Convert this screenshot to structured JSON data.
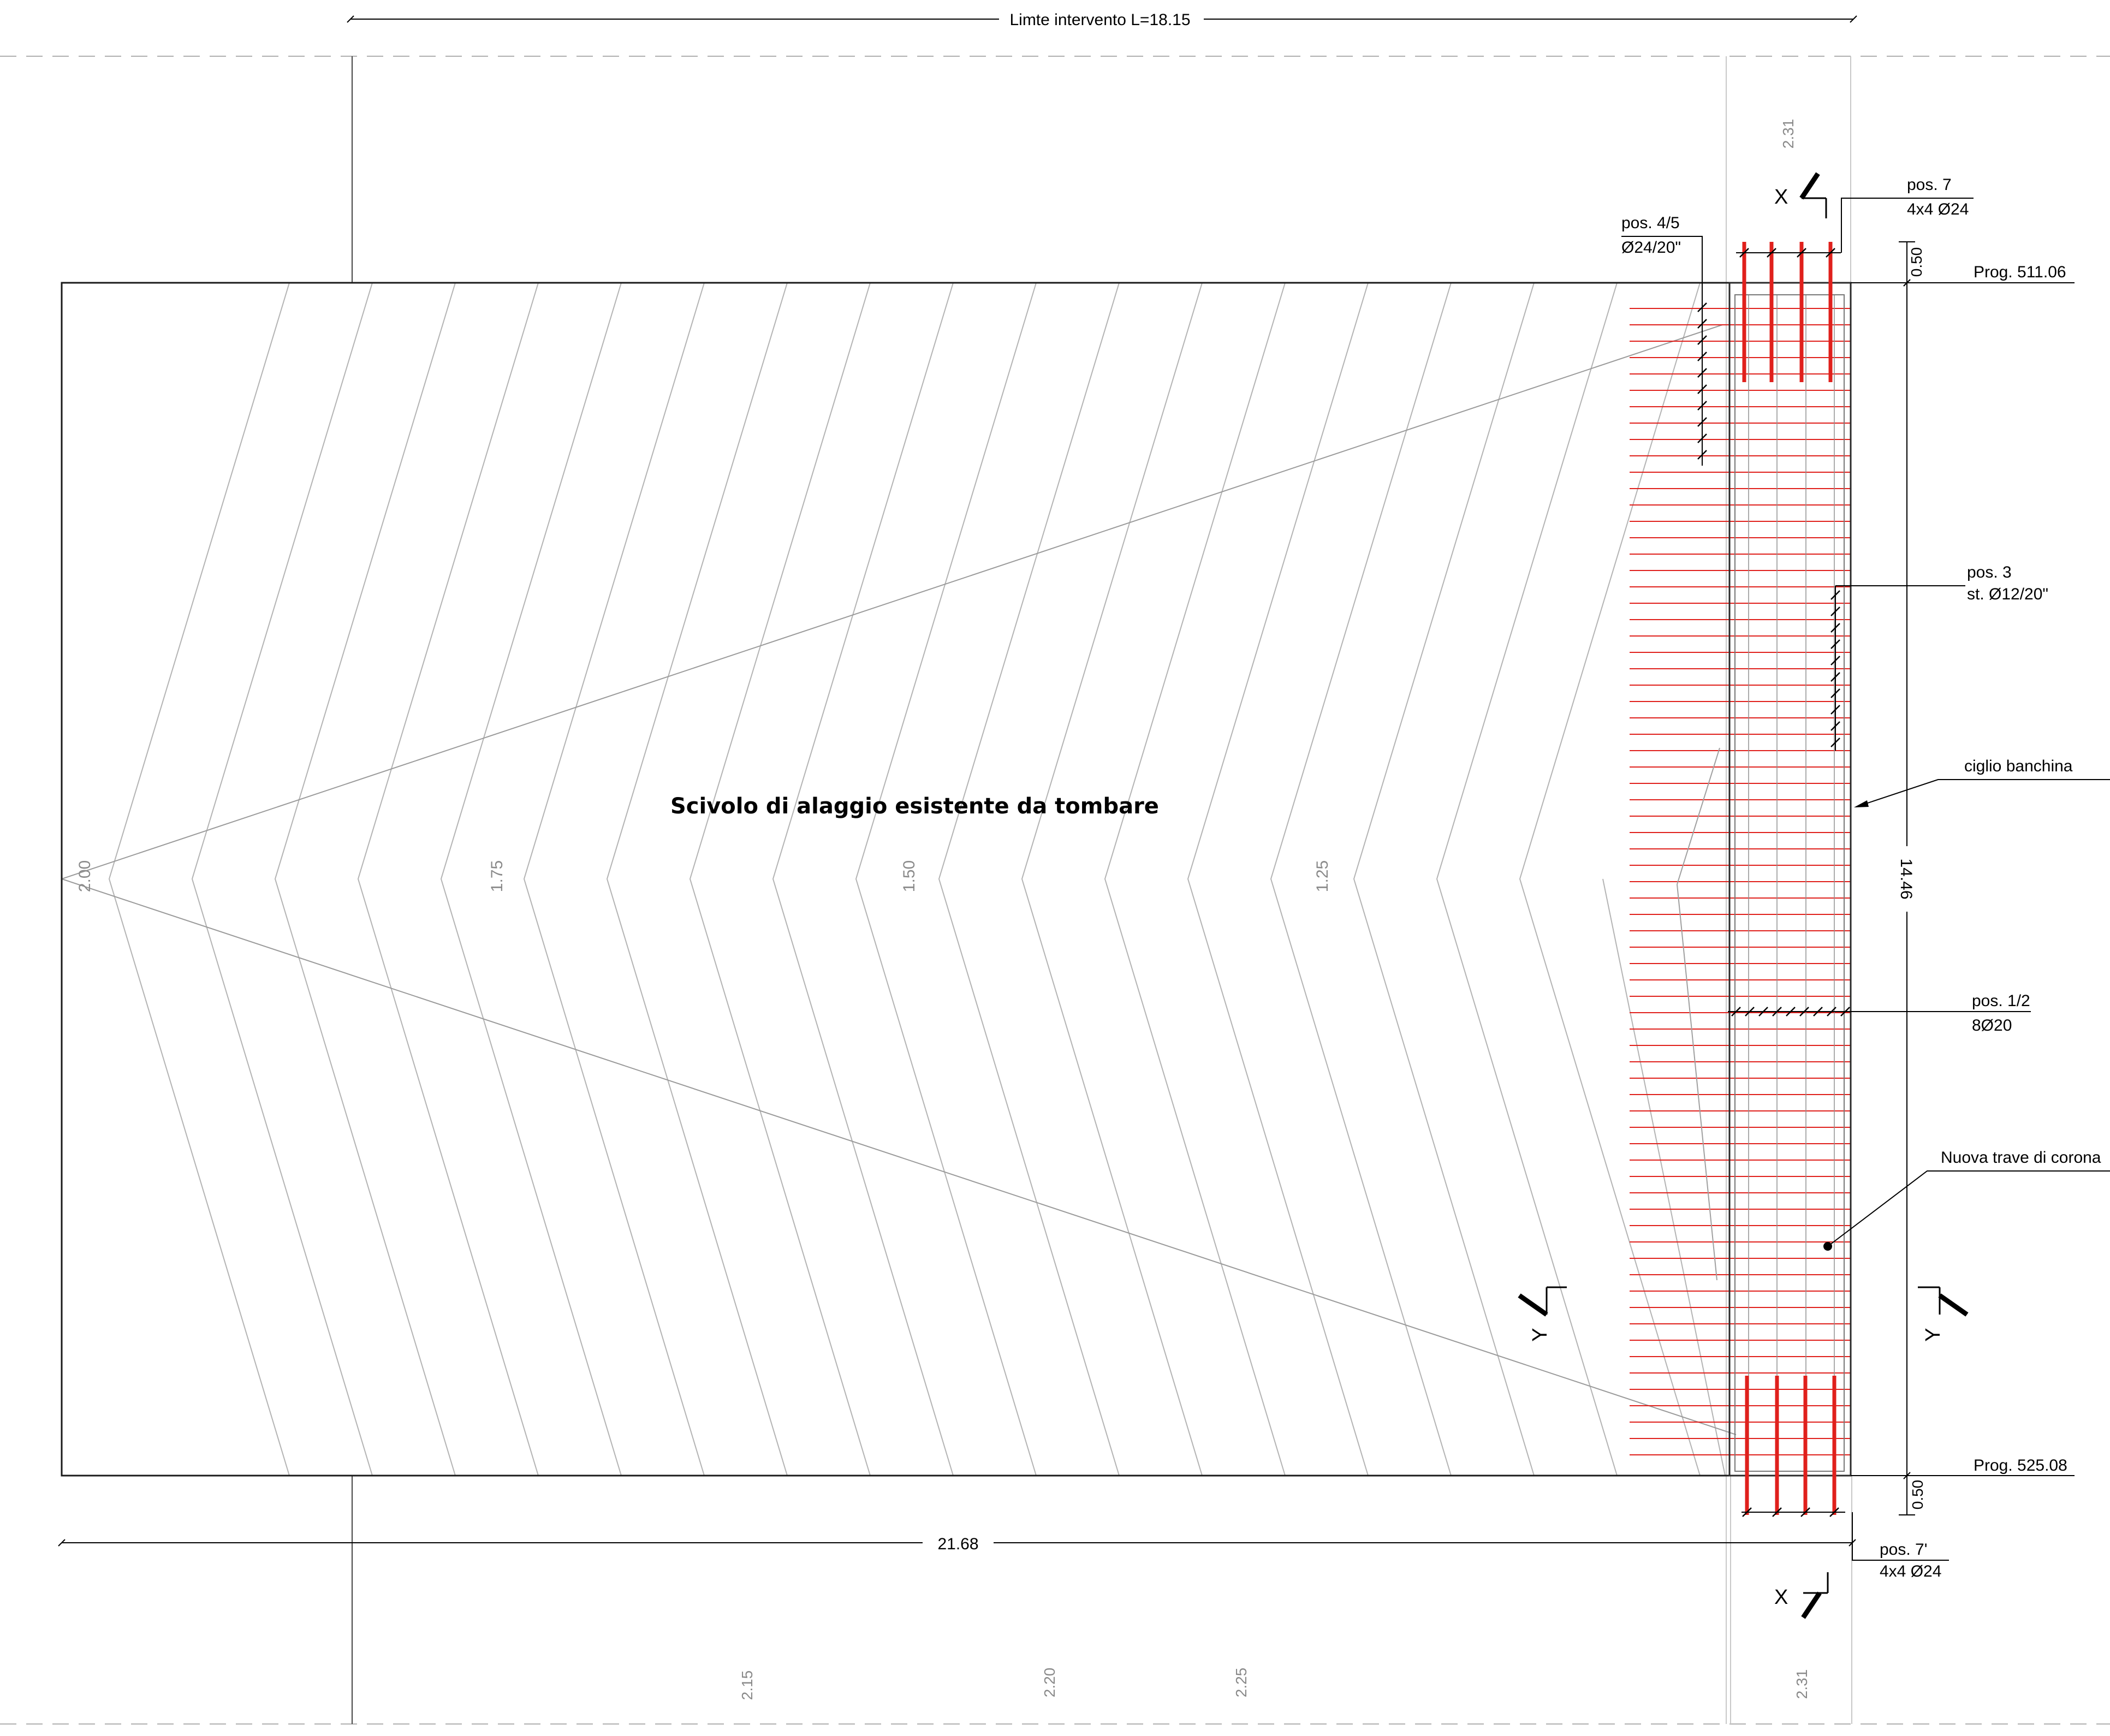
{
  "dimensions": {
    "top_limit": "Limte intervento L=18.15",
    "bottom_length": "21.68",
    "right_height": "14.46",
    "offset_top": "0.50",
    "offset_bottom": "0.50",
    "col_width_top": "2.31",
    "col_width_bottom": "2.31"
  },
  "elevations": {
    "e200": "2.00",
    "e175": "1.75",
    "e150": "1.50",
    "e125": "1.25"
  },
  "bottom_labels": {
    "l215": "2.15",
    "l220": "2.20",
    "l225": "2.25"
  },
  "progressives": {
    "top": "Prog. 511.06",
    "bottom": "Prog. 525.08"
  },
  "main_label": "Scivolo di alaggio esistente da tombare",
  "callouts": {
    "pos7": {
      "line1": "pos. 7",
      "line2": "4x4 Ø24"
    },
    "pos45": {
      "line1": "pos. 4/5",
      "line2": "Ø24/20\""
    },
    "pos3": {
      "line1": "pos. 3",
      "line2": "st. Ø12/20\""
    },
    "ciglio": "ciglio banchina",
    "pos12": {
      "line1": "pos. 1/2",
      "line2": "8Ø20"
    },
    "nuova": "Nuova trave di corona",
    "pos7b": {
      "line1": "pos. 7'",
      "line2": "4x4 Ø24"
    }
  },
  "section_marks": {
    "x_top": "X",
    "x_bottom": "X",
    "y_left": "Y",
    "y_right": "Y"
  },
  "colors": {
    "rebar": "#e0201c",
    "hatch": "#b4b4b4",
    "outline": "#1a1a1a",
    "dim_text": "#8a8a8a"
  }
}
